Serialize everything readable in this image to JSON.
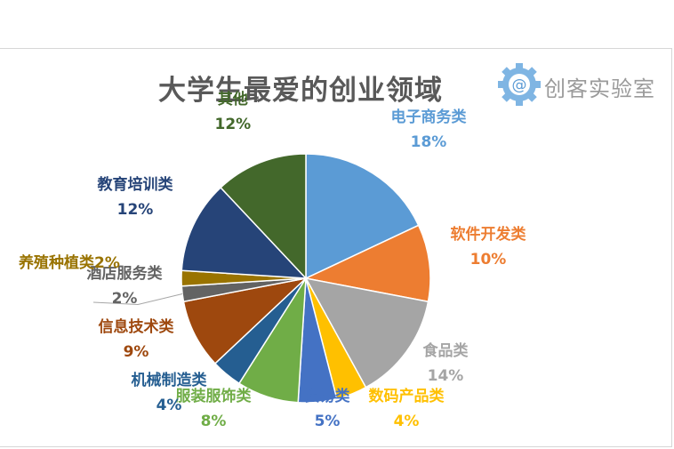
{
  "chart_data": {
    "type": "pie",
    "title": "大学生最爱的创业领域",
    "slices": [
      {
        "name": "电子商务类",
        "pct_label": "18%",
        "value": 18,
        "color": "#5b9bd5"
      },
      {
        "name": "软件开发类",
        "pct_label": "10%",
        "value": 10,
        "color": "#ed7d31"
      },
      {
        "name": "食品类",
        "pct_label": "14%",
        "value": 14,
        "color": "#a5a5a5"
      },
      {
        "name": "数码产品类",
        "pct_label": "4%",
        "value": 4,
        "color": "#ffc000"
      },
      {
        "name": "贸易类",
        "pct_label": "5%",
        "value": 5,
        "color": "#4472c4"
      },
      {
        "name": "服装服饰类",
        "pct_label": "8%",
        "value": 8,
        "color": "#70ad47"
      },
      {
        "name": "机械制造类",
        "pct_label": "4%",
        "value": 4,
        "color": "#255e91"
      },
      {
        "name": "信息技术类",
        "pct_label": "9%",
        "value": 9,
        "color": "#9e480e"
      },
      {
        "name": "酒店服务类",
        "pct_label": "2%",
        "value": 2,
        "color": "#636363"
      },
      {
        "name": "养殖种植类",
        "pct_label": "2%",
        "value": 2,
        "color": "#997300"
      },
      {
        "name": "教育培训类",
        "pct_label": "12%",
        "value": 12,
        "color": "#264478"
      },
      {
        "name": "其他",
        "pct_label": "12%",
        "value": 12,
        "color": "#43682b"
      }
    ]
  },
  "logo": {
    "text": "创客实验室",
    "symbol": "@",
    "icon": "gear-icon",
    "color": "#5b9bd5"
  }
}
